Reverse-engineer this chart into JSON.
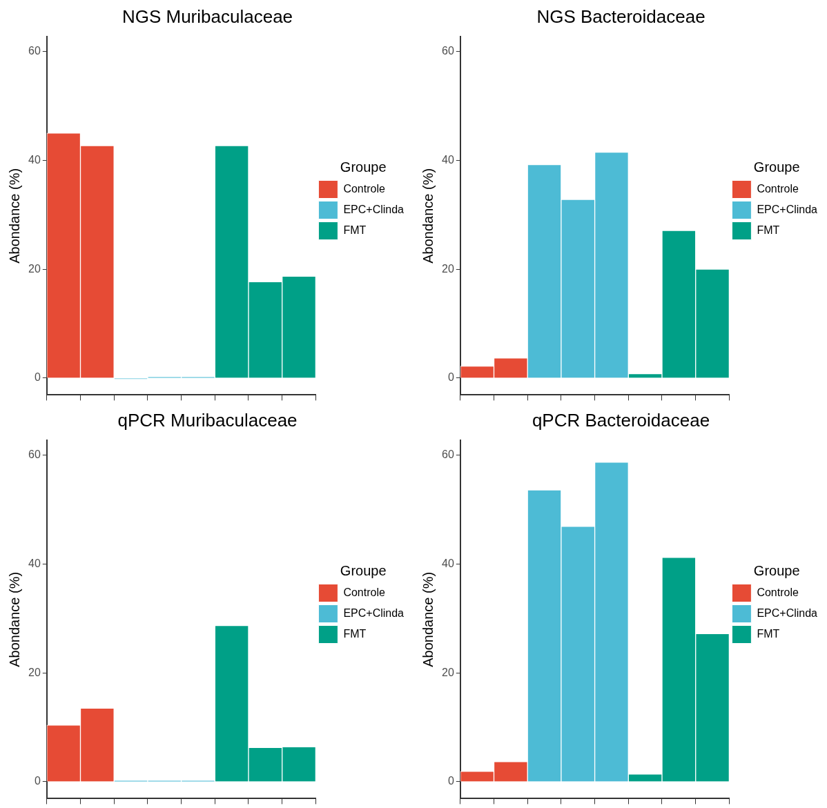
{
  "chart_data": [
    {
      "type": "bar",
      "title": "NGS Muribaculaceae",
      "ylabel": "Abondance (%)",
      "legend_title": "Groupe",
      "legend": "right",
      "grid": false,
      "tick_labels": "y",
      "categories": [
        null,
        null,
        null,
        null,
        null,
        null,
        null,
        null
      ],
      "ylim": [
        -3.1,
        62.7
      ],
      "yticks": [
        0,
        20,
        40,
        60
      ],
      "series": [
        {
          "name": "Controle",
          "color": "#e64b35",
          "values": [
            45.0,
            42.7,
            null,
            null,
            null,
            null,
            null,
            null
          ]
        },
        {
          "name": "EPC+Clinda",
          "color": "#4dbbd5",
          "values": [
            null,
            null,
            -0.2,
            0.2,
            0.2,
            null,
            null,
            null
          ]
        },
        {
          "name": "FMT",
          "color": "#00a087",
          "values": [
            null,
            null,
            null,
            null,
            null,
            42.7,
            17.7,
            18.7
          ]
        }
      ]
    },
    {
      "type": "bar",
      "title": "NGS Bacteroidaceae",
      "ylabel": "Abondance (%)",
      "legend_title": "Groupe",
      "legend": "right",
      "grid": false,
      "tick_labels": "y",
      "categories": [
        null,
        null,
        null,
        null,
        null,
        null,
        null,
        null
      ],
      "ylim": [
        -3.1,
        62.7
      ],
      "yticks": [
        0,
        20,
        40,
        60
      ],
      "series": [
        {
          "name": "Controle",
          "color": "#e64b35",
          "values": [
            2.2,
            3.7,
            null,
            null,
            null,
            null,
            null,
            null
          ]
        },
        {
          "name": "EPC+Clinda",
          "color": "#4dbbd5",
          "values": [
            null,
            null,
            39.2,
            32.8,
            41.5,
            null,
            null,
            null
          ]
        },
        {
          "name": "FMT",
          "color": "#00a087",
          "values": [
            null,
            null,
            null,
            null,
            null,
            0.8,
            27.1,
            20.0
          ]
        }
      ]
    },
    {
      "type": "bar",
      "title": "qPCR Muribaculaceae",
      "ylabel": "Abondance (%)",
      "legend_title": "Groupe",
      "legend": "right",
      "grid": false,
      "tick_labels": "y",
      "categories": [
        null,
        null,
        null,
        null,
        null,
        null,
        null,
        null
      ],
      "ylim": [
        -3.1,
        62.7
      ],
      "yticks": [
        0,
        20,
        40,
        60
      ],
      "series": [
        {
          "name": "Controle",
          "color": "#e64b35",
          "values": [
            10.4,
            13.5,
            null,
            null,
            null,
            null,
            null,
            null
          ]
        },
        {
          "name": "EPC+Clinda",
          "color": "#4dbbd5",
          "values": [
            null,
            null,
            0.2,
            0.2,
            0.2,
            null,
            null,
            null
          ]
        },
        {
          "name": "FMT",
          "color": "#00a087",
          "values": [
            null,
            null,
            null,
            null,
            null,
            28.7,
            6.3,
            6.4
          ]
        }
      ]
    },
    {
      "type": "bar",
      "title": "qPCR Bacteroidaceae",
      "ylabel": "Abondance (%)",
      "legend_title": "Groupe",
      "legend": "right",
      "grid": false,
      "tick_labels": "y",
      "categories": [
        null,
        null,
        null,
        null,
        null,
        null,
        null,
        null
      ],
      "ylim": [
        -3.1,
        62.7
      ],
      "yticks": [
        0,
        20,
        40,
        60
      ],
      "series": [
        {
          "name": "Controle",
          "color": "#e64b35",
          "values": [
            1.9,
            3.7,
            null,
            null,
            null,
            null,
            null,
            null
          ]
        },
        {
          "name": "EPC+Clinda",
          "color": "#4dbbd5",
          "values": [
            null,
            null,
            53.6,
            46.9,
            58.7,
            null,
            null,
            null
          ]
        },
        {
          "name": "FMT",
          "color": "#00a087",
          "values": [
            null,
            null,
            null,
            null,
            null,
            1.4,
            41.2,
            27.2
          ]
        }
      ]
    }
  ]
}
